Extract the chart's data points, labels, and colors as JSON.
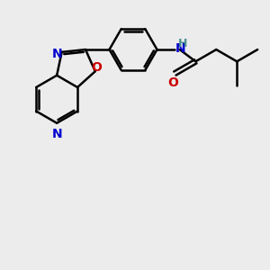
{
  "background_color": "#ececec",
  "bond_color": "#000000",
  "bond_width": 1.8,
  "N_color": "#0000cc",
  "O_color": "#cc0000",
  "H_color": "#4a8f8f",
  "font_size": 10,
  "fig_width": 3.0,
  "fig_height": 3.0,
  "dpi": 100,
  "xlim": [
    0,
    10
  ],
  "ylim": [
    0,
    10
  ]
}
